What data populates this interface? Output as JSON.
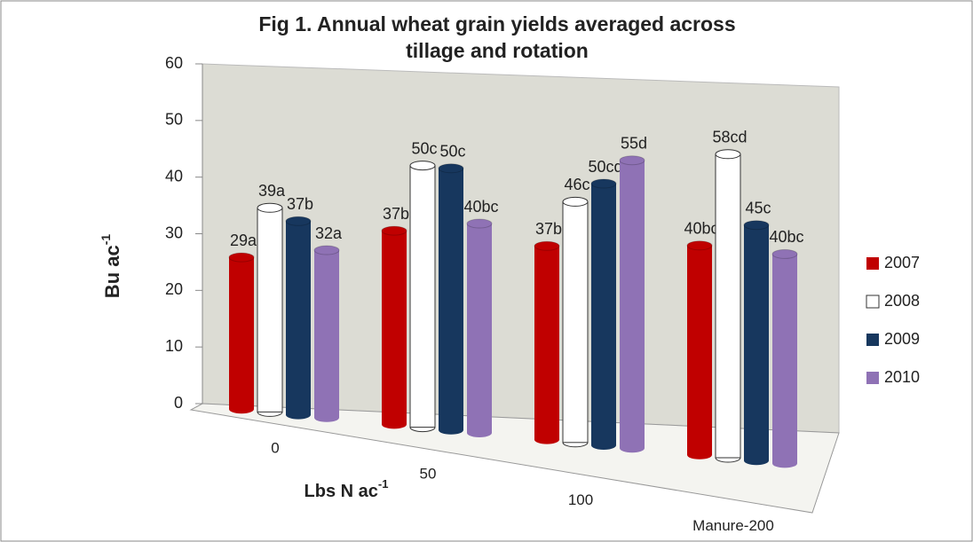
{
  "chart_data": {
    "type": "bar3d",
    "title": "Fig 1. Annual wheat grain yields averaged across tillage and rotation",
    "y_label": {
      "text": "Bu ac",
      "superscript": "-1"
    },
    "x_label": {
      "text": "Lbs N ac",
      "superscript": "-1"
    },
    "categories": [
      "0",
      "50",
      "100",
      "Manure-200"
    ],
    "series": [
      {
        "name": "2007",
        "color": "#c00000",
        "values": [
          29,
          37,
          37,
          40
        ],
        "value_labels": [
          "29a",
          "37b",
          "37b",
          "40bc"
        ]
      },
      {
        "name": "2008",
        "color": "#ffffff",
        "values": [
          39,
          50,
          46,
          58
        ],
        "value_labels": [
          "39a",
          "50c",
          "46c",
          "58cd"
        ]
      },
      {
        "name": "2009",
        "color": "#17375e",
        "values": [
          37,
          50,
          50,
          45
        ],
        "value_labels": [
          "37b",
          "50c",
          "50cd",
          "45c"
        ]
      },
      {
        "name": "2010",
        "color": "#8f72b5",
        "values": [
          32,
          40,
          55,
          40
        ],
        "value_labels": [
          "32a",
          "40bc",
          "55d",
          "40bc"
        ]
      }
    ],
    "ylim": [
      0,
      60
    ],
    "yticks": [
      0,
      10,
      20,
      30,
      40,
      50,
      60
    ],
    "legend": "right"
  }
}
